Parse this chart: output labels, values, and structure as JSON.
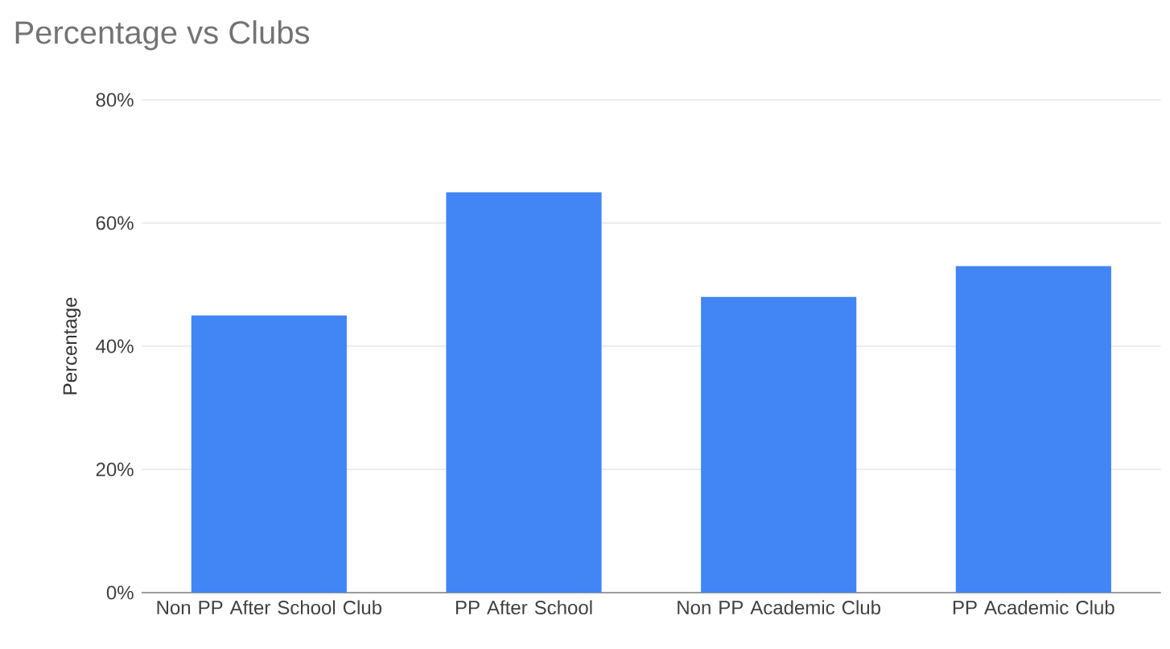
{
  "chart_data": {
    "type": "bar",
    "title": "Percentage vs Clubs",
    "ylabel": "Percentage",
    "categories": [
      "Non PP After School Club",
      "PP After School",
      "Non PP Academic Club",
      "PP Academic Club"
    ],
    "values": [
      45,
      65,
      48,
      53
    ],
    "color": "#4285f4",
    "ylim": [
      0,
      80
    ],
    "yticks": [
      {
        "value": 0,
        "label": "0%"
      },
      {
        "value": 20,
        "label": "20%"
      },
      {
        "value": 40,
        "label": "40%"
      },
      {
        "value": 60,
        "label": "60%"
      },
      {
        "value": 80,
        "label": "80%"
      }
    ],
    "grid": "y"
  }
}
